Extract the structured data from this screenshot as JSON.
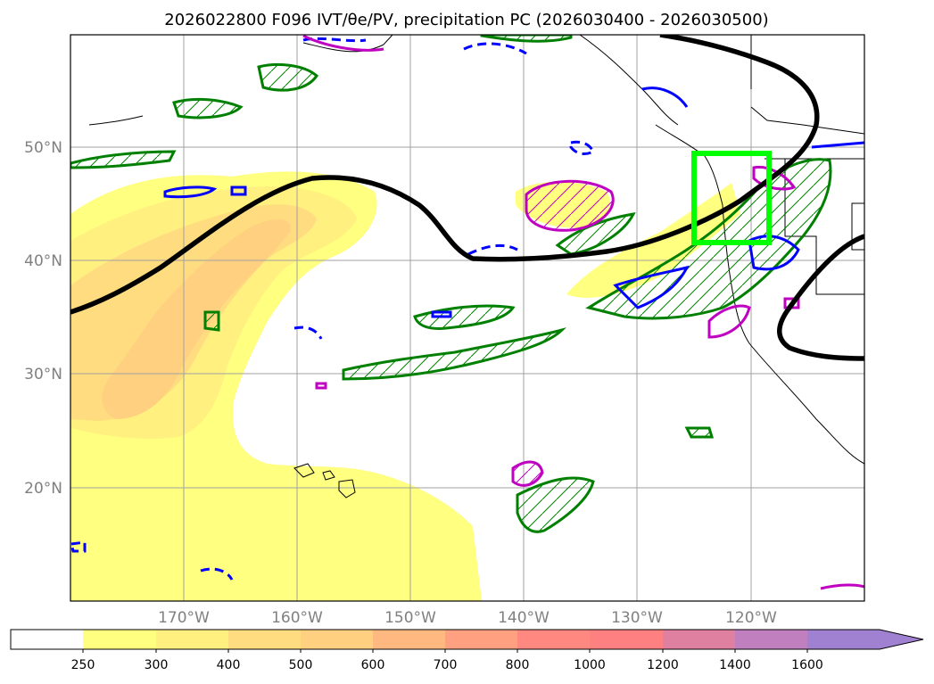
{
  "title": "2026022800 F096 IVT/θe/PV, precipitation PC (2026030400 - 2026030500)",
  "map": {
    "lat_labels": [
      "50°N",
      "40°N",
      "30°N",
      "20°N"
    ],
    "lon_labels": [
      "170°W",
      "160°W",
      "150°W",
      "140°W",
      "130°W",
      "120°W"
    ],
    "extent": {
      "lon_min": -180,
      "lon_max": -110,
      "lat_min": 10,
      "lat_max": 60
    },
    "highlight_box": {
      "lon_min": -125,
      "lon_max": -118,
      "lat_min": 41.5,
      "lat_max": 49.5
    },
    "colors": {
      "theta_e_contour": "#000000",
      "precip_contour": "#008000",
      "pv_contour": "#0000ff",
      "pv_high_contour": "#c000c0",
      "highlight_box": "#00ff00"
    }
  },
  "colorbar": {
    "levels": [
      "250",
      "300",
      "400",
      "500",
      "600",
      "700",
      "800",
      "1000",
      "1200",
      "1400",
      "1600"
    ],
    "colors": [
      "#ffffff",
      "#ffff80",
      "#fff080",
      "#ffdc80",
      "#ffd080",
      "#ffb880",
      "#ffa080",
      "#ff8880",
      "#ff8080",
      "#e080a0",
      "#c080c0",
      "#a080d0"
    ],
    "extend": "max"
  }
}
